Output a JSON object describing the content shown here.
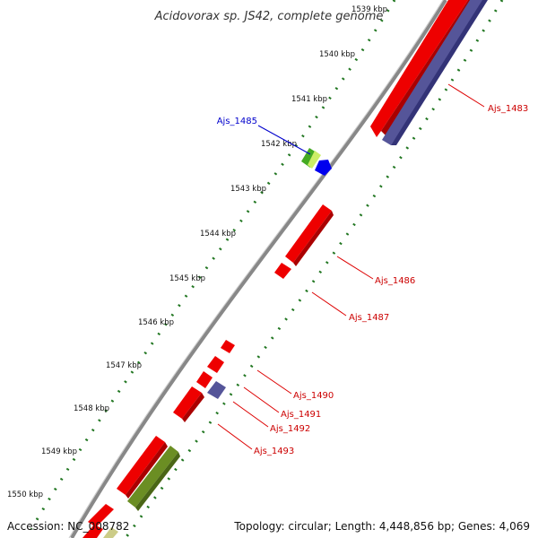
{
  "title": "Acidovorax sp. JS42, complete genome",
  "footer": {
    "accession": "Accession: NC_008782",
    "summary": "Topology: circular; Length: 4,448,856 bp; Genes: 4,069"
  },
  "ticks": [
    {
      "label": "1539 kbp",
      "pos_kbp": 1539
    },
    {
      "label": "1540 kbp",
      "pos_kbp": 1540
    },
    {
      "label": "1541 kbp",
      "pos_kbp": 1541
    },
    {
      "label": "1542 kbp",
      "pos_kbp": 1542
    },
    {
      "label": "1543 kbp",
      "pos_kbp": 1543
    },
    {
      "label": "1544 kbp",
      "pos_kbp": 1544
    },
    {
      "label": "1545 kbp",
      "pos_kbp": 1545
    },
    {
      "label": "1546 kbp",
      "pos_kbp": 1546
    },
    {
      "label": "1547 kbp",
      "pos_kbp": 1547
    },
    {
      "label": "1548 kbp",
      "pos_kbp": 1548
    },
    {
      "label": "1549 kbp",
      "pos_kbp": 1549
    },
    {
      "label": "1550 kbp",
      "pos_kbp": 1550
    }
  ],
  "gene_labels": [
    {
      "name": "Ajs_1483",
      "color": "#cc0000"
    },
    {
      "name": "Ajs_1485",
      "color": "#0000cc"
    },
    {
      "name": "Ajs_1486",
      "color": "#cc0000"
    },
    {
      "name": "Ajs_1487",
      "color": "#cc0000"
    },
    {
      "name": "Ajs_1490",
      "color": "#cc0000"
    },
    {
      "name": "Ajs_1491",
      "color": "#cc0000"
    },
    {
      "name": "Ajs_1492",
      "color": "#cc0000"
    },
    {
      "name": "Ajs_1493",
      "color": "#cc0000"
    }
  ],
  "colors": {
    "red_gene": "#ee0000",
    "blue_gene": "#0000ee",
    "purple_gene": "#555599",
    "olive_gene": "#6b8e23",
    "green_gene": "#44aa22",
    "tick_green": "#227722",
    "backbone": "#888888"
  }
}
